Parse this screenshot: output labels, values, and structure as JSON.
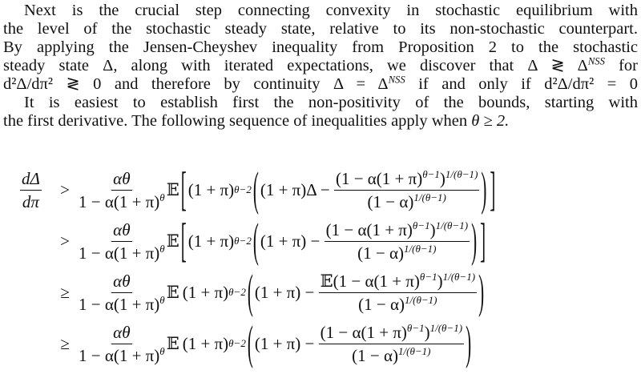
{
  "paragraph": {
    "l1": "Next is the crucial step connecting convexity in stochastic equilibrium with",
    "l2": "the level of the stochastic steady state, relative to its non-stochastic counterpart.",
    "l3": "By applying the Jensen-Cheyshev inequality from Proposition 2 to the stochastic",
    "l4a": "steady state Δ, along with iterated expectations, we discover that Δ ≷ Δ",
    "l4sup": "NSS",
    "l4b": " for",
    "l5a": "d²Δ/dπ² ≷ 0 and therefore by continuity Δ = Δ",
    "l5sup": "NSS",
    "l5b": " if and only if d²Δ/dπ² = 0",
    "l6": "It is easiest to establish first the non-positivity of the bounds, starting with",
    "l7a": "the first derivative. The following sequence of inequalities apply when ",
    "l7m": "θ ≥ 2."
  },
  "equations": {
    "lhs_num": "dΔ",
    "lhs_den": "dπ",
    "rows": [
      {
        "rel": ">",
        "cnum": "αθ",
        "cden": "1 − α(1 + π)",
        "cden_sup": "θ",
        "E": "𝔼",
        "lbr": "[",
        "base": "(1 + π)",
        "exp": "θ−2",
        "inner": "(1 + π)Δ − ",
        "num_a": "(1 − α(1 + π)",
        "num_s1": "θ−1",
        "num_b": ")",
        "num_s2": "1/(θ−1)",
        "den_a": "(1 − α)",
        "den_s": "1/(θ−1)",
        "rbr": "]"
      },
      {
        "rel": ">",
        "cnum": "αθ",
        "cden": "1 − α(1 + π)",
        "cden_sup": "θ",
        "E": "𝔼",
        "lbr": "[",
        "base": "(1 + π)",
        "exp": "θ−2",
        "inner": "(1 + π) − ",
        "num_a": "(1 − α(1 + π)",
        "num_s1": "θ−1",
        "num_b": ")",
        "num_s2": "1/(θ−1)",
        "den_a": "(1 − α)",
        "den_s": "1/(θ−1)",
        "rbr": "]"
      },
      {
        "rel": "≥",
        "cnum": "αθ",
        "cden": "1 − α(1 + π)",
        "cden_sup": "θ",
        "E": "𝔼",
        "lbr": "",
        "base": "(1 + π)",
        "exp": "θ−2",
        "inner": "(1 + π) − ",
        "num_a": "𝔼(1 − α(1 + π)",
        "num_s1": "θ−1",
        "num_b": ")",
        "num_s2": "1/(θ−1)",
        "den_a": "(1 − α)",
        "den_s": "1/(θ−1)",
        "rbr": ""
      },
      {
        "rel": "≥",
        "cnum": "αθ",
        "cden": "1 − α(1 + π)",
        "cden_sup": "θ",
        "E": "𝔼",
        "lbr": "",
        "base": "(1 + π)",
        "exp": "θ−2",
        "inner": "(1 + π) − ",
        "num_a": "(1 − α(1 + π)",
        "num_s1": "θ−1",
        "num_b": ")",
        "num_s2": "1/(θ−1)",
        "den_a": "(1 − α)",
        "den_s": "1/(θ−1)",
        "rbr": ""
      }
    ]
  }
}
